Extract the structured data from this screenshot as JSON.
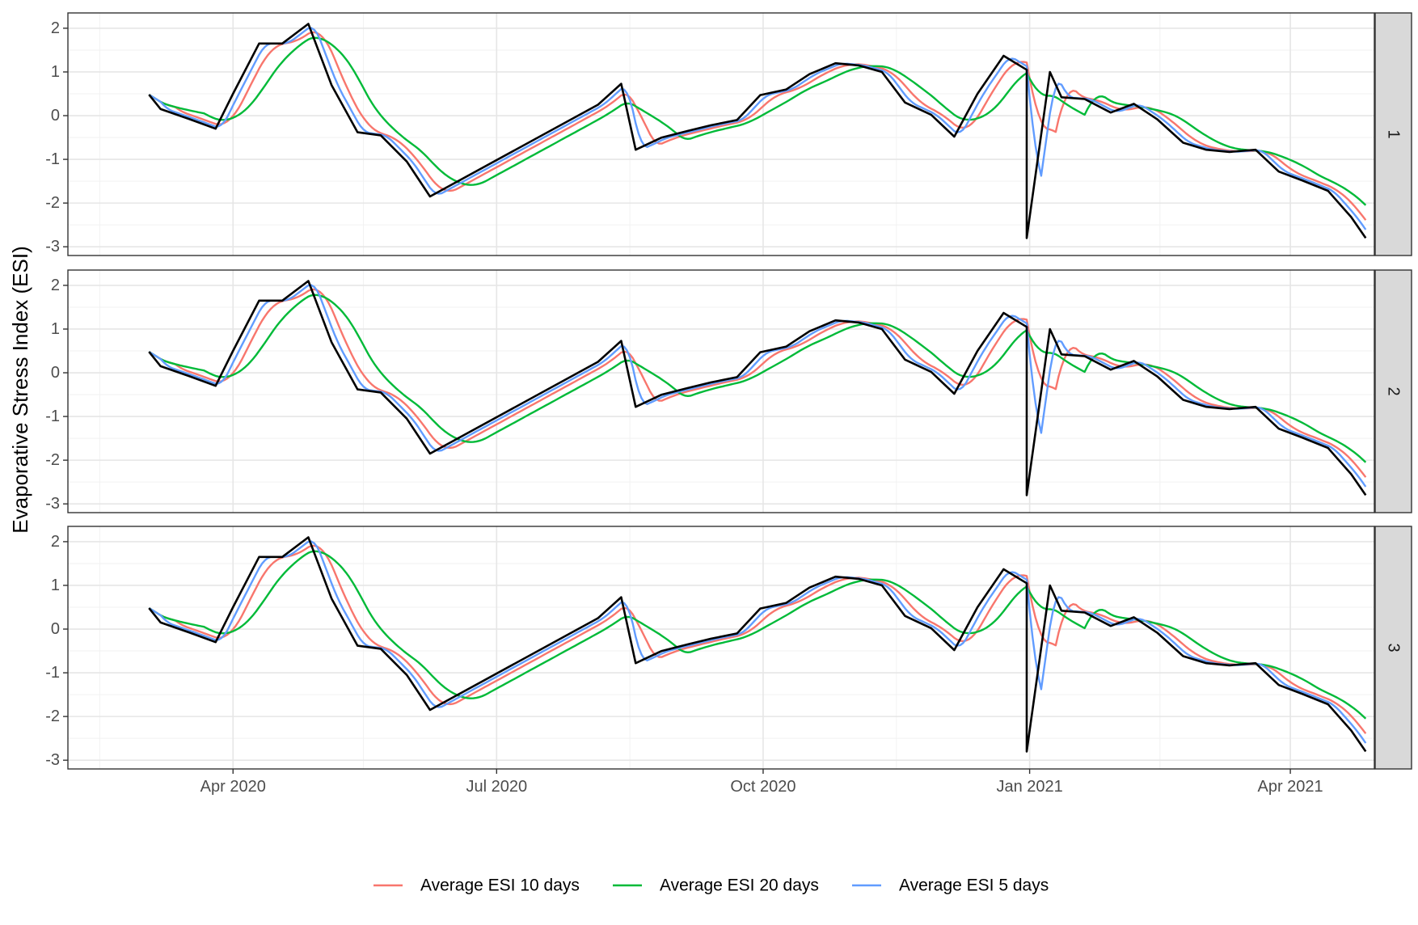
{
  "chart_data": {
    "type": "line",
    "ylabel": "Evaporative Stress Index (ESI)",
    "xlabel": "",
    "x_ticks": [
      "2020-04-01",
      "2020-07-01",
      "2020-10-01",
      "2021-01-01",
      "2021-04-01"
    ],
    "x_tick_labels": [
      "Apr 2020",
      "Jul 2020",
      "Oct 2020",
      "Jan 2021",
      "Apr 2021"
    ],
    "xlim": [
      "2020-02-04",
      "2021-04-30"
    ],
    "ylim": [
      -3.2,
      2.35
    ],
    "y_ticks": [
      2,
      1,
      0,
      -1,
      -2,
      -3
    ],
    "y_tick_labels": [
      "2",
      "1",
      "0",
      "-1",
      "-2",
      "-3"
    ],
    "grid": true,
    "legend_position": "bottom",
    "legend": [
      {
        "name": "Average ESI 10 days",
        "color": "#F8766D"
      },
      {
        "name": "Average ESI 20 days",
        "color": "#00BA38"
      },
      {
        "name": "Average ESI 5 days",
        "color": "#619CFF"
      }
    ],
    "raw_series_color": "#000000",
    "panels": [
      {
        "strip": "1",
        "raw": [
          [
            "2020-03-03",
            0.48
          ],
          [
            "2020-03-07",
            0.15
          ],
          [
            "2020-03-17",
            -0.08
          ],
          [
            "2020-03-26",
            -0.3
          ],
          [
            "2020-04-01",
            0.5
          ],
          [
            "2020-04-10",
            1.65
          ],
          [
            "2020-04-18",
            1.65
          ],
          [
            "2020-04-27",
            2.1
          ],
          [
            "2020-05-05",
            0.7
          ],
          [
            "2020-05-14",
            -0.38
          ],
          [
            "2020-05-22",
            -0.45
          ],
          [
            "2020-05-31",
            -1.05
          ],
          [
            "2020-06-08",
            -1.85
          ],
          [
            "2020-08-05",
            0.25
          ],
          [
            "2020-08-13",
            0.73
          ],
          [
            "2020-08-18",
            -0.78
          ],
          [
            "2020-08-27",
            -0.5
          ],
          [
            "2020-09-05",
            -0.35
          ],
          [
            "2020-09-13",
            -0.22
          ],
          [
            "2020-09-22",
            -0.1
          ],
          [
            "2020-09-30",
            0.47
          ],
          [
            "2020-10-09",
            0.6
          ],
          [
            "2020-10-17",
            0.95
          ],
          [
            "2020-10-26",
            1.2
          ],
          [
            "2020-11-03",
            1.15
          ],
          [
            "2020-11-11",
            1.0
          ],
          [
            "2020-11-19",
            0.3
          ],
          [
            "2020-11-28",
            0.02
          ],
          [
            "2020-12-06",
            -0.48
          ],
          [
            "2020-12-14",
            0.5
          ],
          [
            "2020-12-23",
            1.37
          ],
          [
            "2020-12-31",
            1.05
          ],
          [
            "2021-01-08",
            1.0
          ],
          [
            "2021-01-12",
            0.42
          ],
          [
            "2021-01-20",
            0.38
          ],
          [
            "2021-01-29",
            0.07
          ],
          [
            "2021-02-06",
            0.27
          ],
          [
            "2021-02-14",
            -0.08
          ],
          [
            "2021-02-23",
            -0.62
          ],
          [
            "2021-03-03",
            -0.78
          ],
          [
            "2021-03-11",
            -0.83
          ],
          [
            "2021-03-20",
            -0.78
          ],
          [
            "2021-03-28",
            -1.28
          ],
          [
            "2021-04-05",
            -1.48
          ],
          [
            "2021-04-14",
            -1.72
          ],
          [
            "2021-04-22",
            -2.32
          ],
          [
            "2021-04-27",
            -2.8
          ],
          [
            "2020-12-31",
            -2.8
          ]
        ]
      },
      {
        "strip": "2"
      },
      {
        "strip": "3"
      }
    ]
  }
}
